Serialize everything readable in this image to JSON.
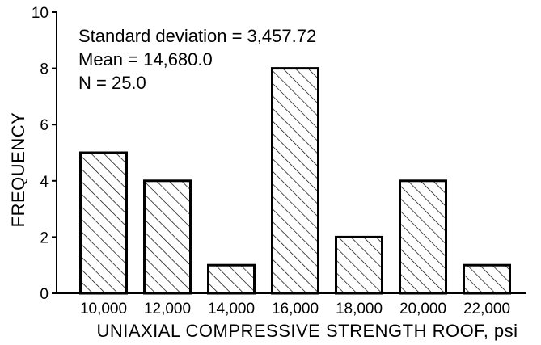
{
  "chart_data": {
    "type": "bar",
    "title": "",
    "xlabel": "UNIAXIAL COMPRESSIVE STRENGTH ROOF, psi",
    "ylabel": "FREQUENCY",
    "categories": [
      "10,000",
      "12,000",
      "14,000",
      "16,000",
      "18,000",
      "20,000",
      "22,000"
    ],
    "values": [
      5,
      4,
      1,
      8,
      2,
      4,
      1
    ],
    "ylim": [
      0,
      10
    ],
    "yticks": [
      "0",
      "2",
      "4",
      "6",
      "8",
      "10"
    ],
    "bar_fill": "diagonal-hatch",
    "grid": false,
    "annotations": [
      "Standard deviation = 3,457.72",
      "Mean = 14,680.0",
      "N = 25.0"
    ]
  }
}
